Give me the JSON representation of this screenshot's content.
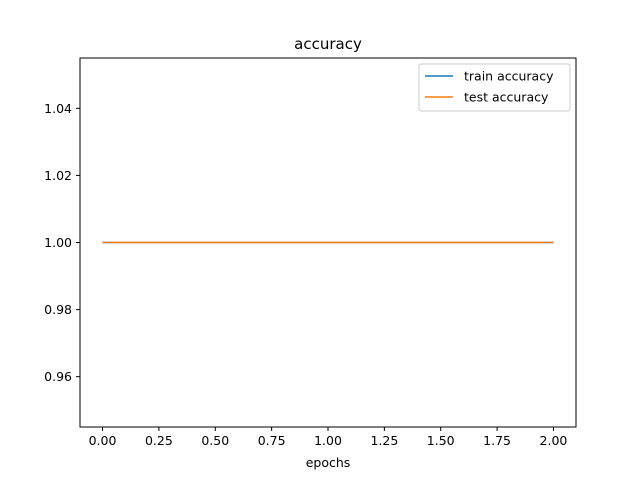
{
  "chart_data": {
    "type": "line",
    "title": "accuracy",
    "xlabel": "epochs",
    "ylabel": "",
    "x": [
      0,
      1,
      2
    ],
    "series": [
      {
        "name": "train accuracy",
        "color": "#1f77b4",
        "values": [
          1.0,
          1.0,
          1.0
        ]
      },
      {
        "name": "test accuracy",
        "color": "#ff7f0e",
        "values": [
          1.0,
          1.0,
          1.0
        ]
      }
    ],
    "xlim": [
      -0.1,
      2.1
    ],
    "ylim": [
      0.945,
      1.055
    ],
    "xticks": [
      {
        "value": 0.0,
        "label": "0.00"
      },
      {
        "value": 0.25,
        "label": "0.25"
      },
      {
        "value": 0.5,
        "label": "0.50"
      },
      {
        "value": 0.75,
        "label": "0.75"
      },
      {
        "value": 1.0,
        "label": "1.00"
      },
      {
        "value": 1.25,
        "label": "1.25"
      },
      {
        "value": 1.5,
        "label": "1.50"
      },
      {
        "value": 1.75,
        "label": "1.75"
      },
      {
        "value": 2.0,
        "label": "2.00"
      }
    ],
    "yticks": [
      {
        "value": 0.96,
        "label": "0.96"
      },
      {
        "value": 0.98,
        "label": "0.98"
      },
      {
        "value": 1.0,
        "label": "1.00"
      },
      {
        "value": 1.02,
        "label": "1.02"
      },
      {
        "value": 1.04,
        "label": "1.04"
      }
    ],
    "grid": false,
    "legend_position": "top-right"
  }
}
